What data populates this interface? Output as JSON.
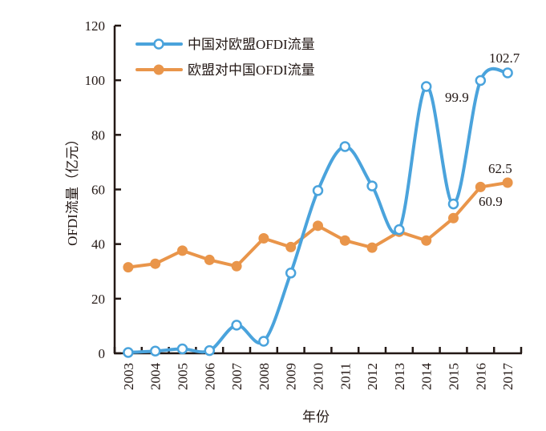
{
  "chart_data": {
    "type": "line",
    "title": "",
    "xlabel": "年份",
    "ylabel": "OFDI流量（亿元）",
    "ylim": [
      0,
      120
    ],
    "yticks": [
      0,
      20,
      40,
      60,
      80,
      100,
      120
    ],
    "grid": false,
    "legend_position": "top-left",
    "categories": [
      "2003",
      "2004",
      "2005",
      "2006",
      "2007",
      "2008",
      "2009",
      "2010",
      "2011",
      "2012",
      "2013",
      "2014",
      "2015",
      "2016",
      "2017"
    ],
    "series": [
      {
        "name": "中国对欧盟OFDI流量",
        "color": "#4AA3DC",
        "marker": "open-circle",
        "smooth": true,
        "values": [
          0.3,
          0.8,
          1.6,
          1.0,
          10.3,
          4.4,
          29.4,
          59.6,
          75.7,
          61.3,
          45.3,
          97.7,
          54.7,
          99.9,
          102.7
        ]
      },
      {
        "name": "欧盟对中国OFDI流量",
        "color": "#E9954A",
        "marker": "filled-circle",
        "smooth": false,
        "values": [
          31.5,
          32.8,
          37.6,
          34.2,
          31.9,
          42.1,
          38.9,
          46.7,
          41.3,
          38.7,
          44.5,
          41.3,
          49.5,
          60.9,
          62.5
        ]
      }
    ],
    "annotations": [
      {
        "series": 0,
        "category": "2016",
        "text": "99.9"
      },
      {
        "series": 0,
        "category": "2017",
        "text": "102.7"
      },
      {
        "series": 1,
        "category": "2016",
        "text": "60.9"
      },
      {
        "series": 1,
        "category": "2017",
        "text": "62.5"
      }
    ]
  }
}
